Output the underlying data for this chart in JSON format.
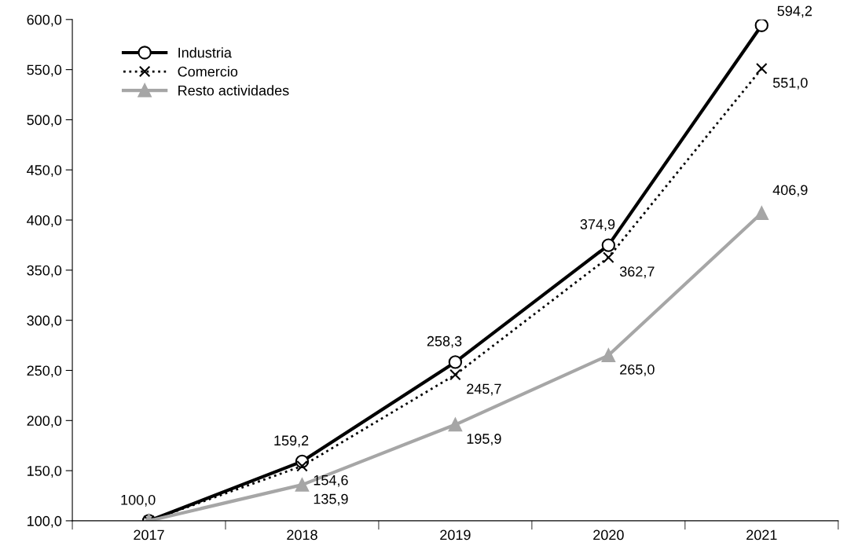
{
  "chart_data": {
    "type": "line",
    "categories": [
      "2017",
      "2018",
      "2019",
      "2020",
      "2021"
    ],
    "series": [
      {
        "name": "Industria",
        "color": "#000000",
        "marker": "circle",
        "line_style": "solid",
        "values": [
          100.0,
          159.2,
          258.3,
          374.9,
          594.2
        ],
        "value_labels": [
          "100,0",
          "159,2",
          "258,3",
          "374,9",
          "594,2"
        ]
      },
      {
        "name": "Comercio",
        "color": "#000000",
        "marker": "cross",
        "line_style": "dotted",
        "values": [
          100.0,
          154.6,
          245.7,
          362.7,
          551.0
        ],
        "value_labels": [
          null,
          "154,6",
          "245,7",
          "362,7",
          "551,0"
        ]
      },
      {
        "name": "Resto actividades",
        "color": "#a6a6a6",
        "marker": "triangle",
        "line_style": "solid",
        "values": [
          100.0,
          135.9,
          195.9,
          265.0,
          406.9
        ],
        "value_labels": [
          null,
          "135,9",
          "195,9",
          "265,0",
          "406,9"
        ]
      }
    ],
    "ylim": [
      100,
      600
    ],
    "yticks": [
      {
        "value": 100,
        "label": "100,0"
      },
      {
        "value": 150,
        "label": "150,0"
      },
      {
        "value": 200,
        "label": "200,0"
      },
      {
        "value": 250,
        "label": "250,0"
      },
      {
        "value": 300,
        "label": "300,0"
      },
      {
        "value": 350,
        "label": "350,0"
      },
      {
        "value": 400,
        "label": "400,0"
      },
      {
        "value": 450,
        "label": "450,0"
      },
      {
        "value": 500,
        "label": "500,0"
      },
      {
        "value": 550,
        "label": "550,0"
      },
      {
        "value": 600,
        "label": "600,0"
      }
    ],
    "grid": false,
    "legend": "top left"
  }
}
